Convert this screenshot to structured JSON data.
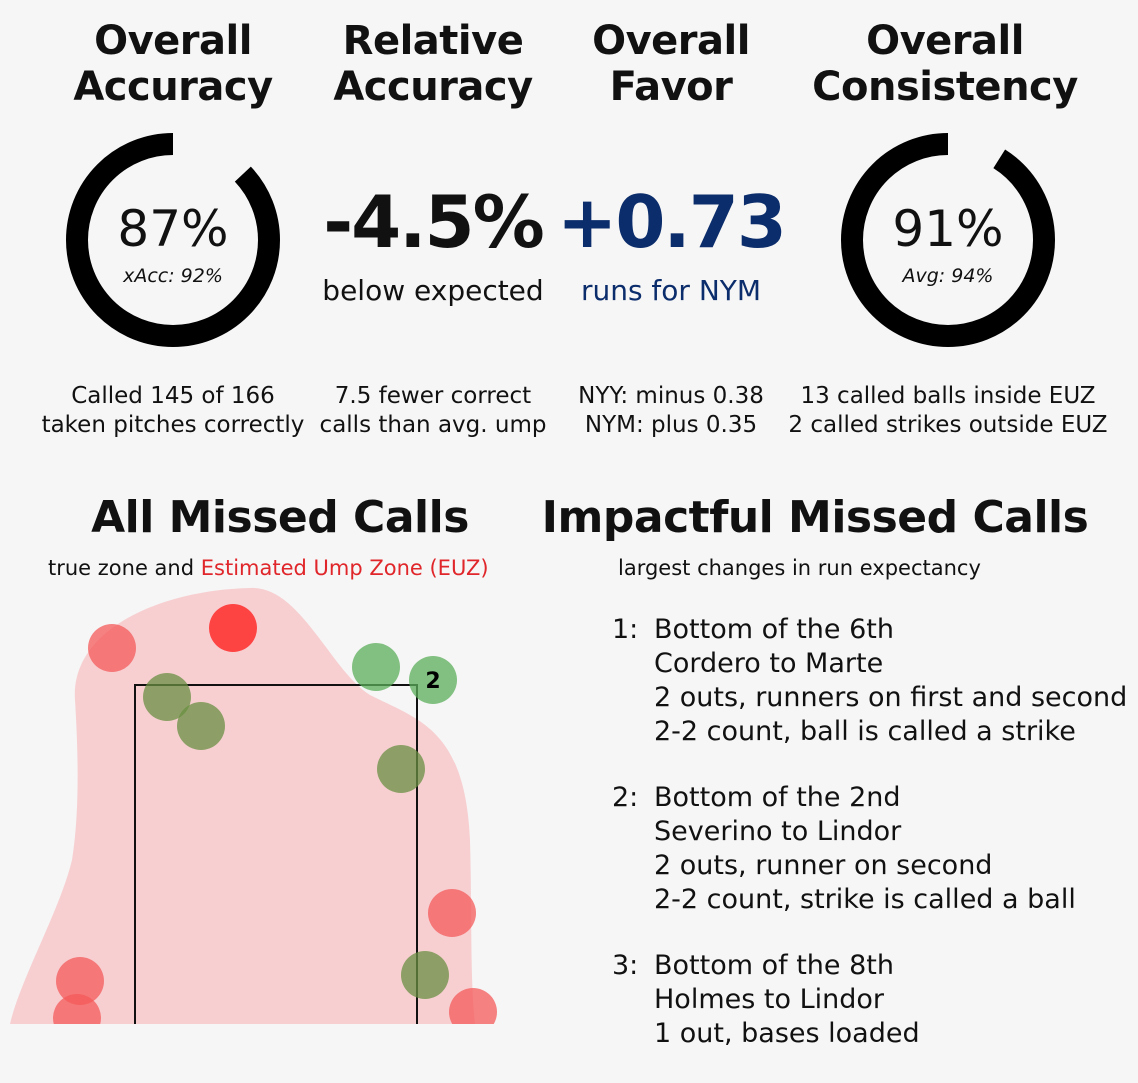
{
  "stats": [
    {
      "title_line1": "Overall",
      "title_line2": "Accuracy",
      "value": "87%",
      "sub": "xAcc: 92%",
      "ring_fraction": 0.87,
      "foot_line1": "Called 145 of 166",
      "foot_line2": "taken pitches correctly"
    },
    {
      "title_line1": "Relative",
      "title_line2": "Accuracy",
      "value": "-4.5%",
      "sub": "below expected",
      "foot_line1": "7.5 fewer correct",
      "foot_line2": "calls than avg. ump"
    },
    {
      "title_line1": "Overall",
      "title_line2": "Favor",
      "value": "+0.73",
      "sub": "runs for NYM",
      "color": "#0c2d6b",
      "foot_line1": "NYY: minus 0.38",
      "foot_line2": "NYM: plus 0.35"
    },
    {
      "title_line1": "Overall",
      "title_line2": "Consistency",
      "value": "91%",
      "sub": "Avg: 94%",
      "ring_fraction": 0.91,
      "foot_line1": "13 called balls inside EUZ",
      "foot_line2": "2 called strikes outside EUZ"
    }
  ],
  "missed": {
    "title": "All Missed Calls",
    "caption_plain": "true zone and",
    "caption_red": "Estimated Ump Zone (EUZ)",
    "colors": {
      "euz": "#f7cfd1",
      "ball_called_strike": "#f44b4b",
      "strike_called_ball": "#5f8f3a",
      "label": "#e0262a"
    },
    "label_2": "2"
  },
  "impactful": {
    "title": "Impactful Missed Calls",
    "caption": "largest changes in run expectancy",
    "items": [
      {
        "num": "1:",
        "lines": [
          "Bottom of the 6th",
          "Cordero to Marte",
          "2 outs, runners on first and second",
          "2-2 count, ball is called a strike"
        ]
      },
      {
        "num": "2:",
        "lines": [
          "Bottom of the 2nd",
          "Severino to Lindor",
          "2 outs, runner on second",
          "2-2 count, strike is called a ball"
        ]
      },
      {
        "num": "3:",
        "lines": [
          "Bottom of the 8th",
          "Holmes to Lindor",
          "1 out, bases loaded"
        ]
      }
    ]
  }
}
